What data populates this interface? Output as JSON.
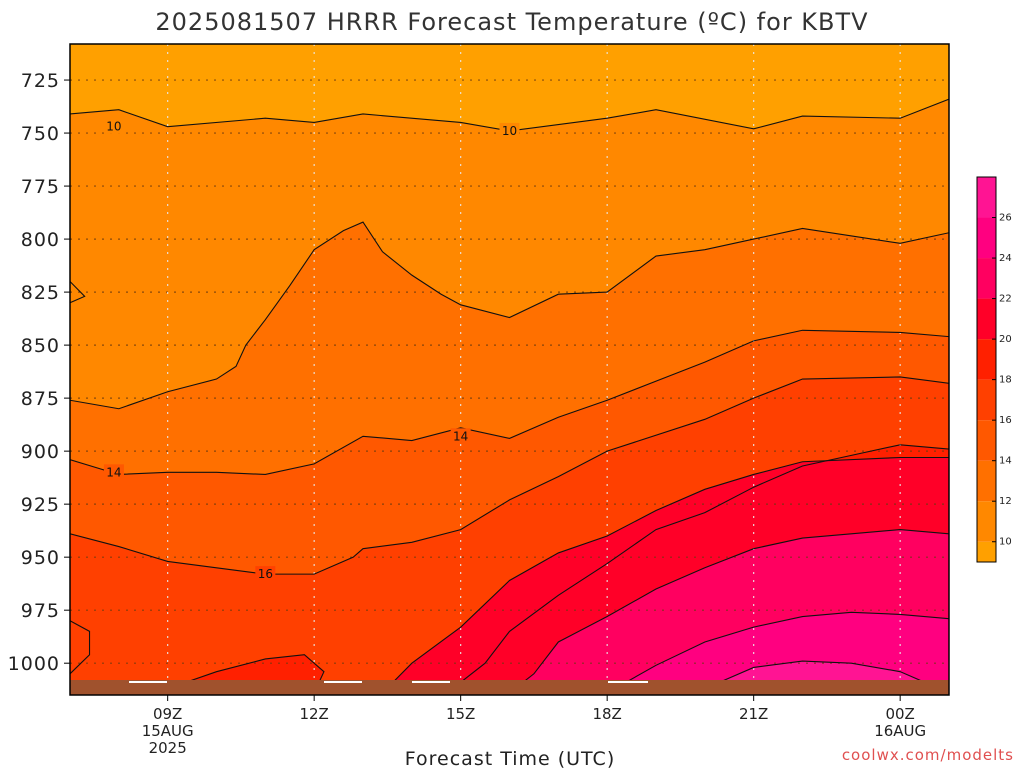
{
  "chart_data": {
    "type": "contour",
    "title": "2025081507 HRRR Forecast Temperature (ºC) for KBTV",
    "xlabel": "Forecast Time (UTC)",
    "ylabel": "",
    "credit": "coolwx.com/modelts",
    "x_ticks": [
      {
        "hour": 9,
        "lines": [
          "09Z",
          "15AUG",
          "2025"
        ]
      },
      {
        "hour": 12,
        "lines": [
          "12Z"
        ]
      },
      {
        "hour": 15,
        "lines": [
          "15Z"
        ]
      },
      {
        "hour": 18,
        "lines": [
          "18Z"
        ]
      },
      {
        "hour": 21,
        "lines": [
          "21Z"
        ]
      },
      {
        "hour": 24,
        "lines": [
          "00Z",
          "16AUG"
        ]
      }
    ],
    "xlim": [
      7,
      25
    ],
    "y_ticks": [
      725,
      750,
      775,
      800,
      825,
      850,
      875,
      900,
      925,
      950,
      975,
      1000
    ],
    "ylim": [
      708,
      1015
    ],
    "y_reversed": true,
    "grid": true,
    "colorbar": {
      "ticks": [
        10,
        12,
        14,
        16,
        18,
        20,
        22,
        24,
        26
      ],
      "colors": [
        "#ffa000",
        "#ff8800",
        "#ff7000",
        "#ff5800",
        "#ff4000",
        "#ff2000",
        "#ff0028",
        "#ff0060",
        "#ff0080",
        "#ff1493"
      ]
    },
    "contour_labels": [
      {
        "text": "10",
        "x": 7.9,
        "y": 747
      },
      {
        "text": "10",
        "x": 16.0,
        "y": 749
      },
      {
        "text": "14",
        "x": 7.9,
        "y": 910
      },
      {
        "text": "14",
        "x": 15.0,
        "y": 893
      },
      {
        "text": "16",
        "x": 11.0,
        "y": 958
      }
    ],
    "contours": [
      {
        "level": 10,
        "points": [
          [
            7,
            741
          ],
          [
            8,
            739
          ],
          [
            9,
            747
          ],
          [
            11,
            743
          ],
          [
            12,
            745
          ],
          [
            13,
            741
          ],
          [
            15,
            745
          ],
          [
            16,
            749
          ],
          [
            18,
            743
          ],
          [
            19,
            739
          ],
          [
            21,
            748
          ],
          [
            22,
            742
          ],
          [
            24,
            743
          ],
          [
            25,
            734
          ]
        ]
      },
      {
        "level": 12,
        "points": [
          [
            7,
            876
          ],
          [
            8,
            880
          ],
          [
            9,
            872
          ],
          [
            10,
            866
          ],
          [
            10.4,
            860
          ],
          [
            10.6,
            850
          ],
          [
            11,
            838
          ],
          [
            11.5,
            822
          ],
          [
            12,
            805
          ],
          [
            12.6,
            796
          ],
          [
            13,
            792
          ],
          [
            13.4,
            806
          ],
          [
            14,
            817
          ],
          [
            14.6,
            826
          ],
          [
            15,
            831
          ],
          [
            16,
            837
          ],
          [
            17,
            826
          ],
          [
            18,
            825
          ],
          [
            19,
            808
          ],
          [
            20,
            805
          ],
          [
            21,
            800
          ],
          [
            22,
            795
          ],
          [
            24,
            802
          ],
          [
            25,
            797
          ]
        ]
      },
      {
        "level": 14,
        "points": [
          [
            7,
            904
          ],
          [
            8,
            911
          ],
          [
            9,
            910
          ],
          [
            10,
            910
          ],
          [
            11,
            911
          ],
          [
            12,
            906
          ],
          [
            13,
            893
          ],
          [
            14,
            895
          ],
          [
            15,
            889
          ],
          [
            16,
            894
          ],
          [
            17,
            884
          ],
          [
            18,
            876
          ],
          [
            20,
            858
          ],
          [
            21,
            848
          ],
          [
            22,
            843
          ],
          [
            24,
            844
          ],
          [
            25,
            846
          ]
        ]
      },
      {
        "level": 16,
        "points": [
          [
            7,
            939
          ],
          [
            8,
            945
          ],
          [
            9,
            952
          ],
          [
            10,
            955
          ],
          [
            11,
            958
          ],
          [
            12,
            958
          ],
          [
            12.8,
            950
          ],
          [
            13,
            946
          ],
          [
            14,
            943
          ],
          [
            15,
            937
          ],
          [
            16,
            923
          ],
          [
            17,
            912
          ],
          [
            18,
            900
          ],
          [
            20,
            885
          ],
          [
            21,
            875
          ],
          [
            22,
            866
          ],
          [
            24,
            865
          ],
          [
            25,
            868
          ]
        ]
      },
      {
        "level": 18,
        "points": [
          [
            14.8,
            1014
          ],
          [
            15,
            1009
          ],
          [
            15.5,
            1000
          ],
          [
            16,
            985
          ],
          [
            17,
            968
          ],
          [
            18,
            953
          ],
          [
            19,
            937
          ],
          [
            20,
            929
          ],
          [
            21,
            917
          ],
          [
            22,
            907
          ],
          [
            23,
            902
          ],
          [
            24,
            897
          ],
          [
            25,
            899
          ]
        ]
      },
      {
        "level": 20,
        "points": [
          [
            13.4,
            1014
          ],
          [
            14,
            1000
          ],
          [
            15,
            983
          ],
          [
            16,
            961
          ],
          [
            17,
            948
          ],
          [
            18,
            940
          ],
          [
            19,
            928
          ],
          [
            20,
            918
          ],
          [
            21,
            911
          ],
          [
            22,
            905
          ],
          [
            24,
            903
          ],
          [
            25,
            903
          ]
        ]
      },
      {
        "level": 22,
        "points": [
          [
            16,
            1014
          ],
          [
            16.5,
            1005
          ],
          [
            17,
            990
          ],
          [
            18,
            978
          ],
          [
            19,
            965
          ],
          [
            20,
            955
          ],
          [
            21,
            946
          ],
          [
            22,
            941
          ],
          [
            24,
            937
          ],
          [
            25,
            939
          ]
        ]
      },
      {
        "level": 24,
        "points": [
          [
            18,
            1014
          ],
          [
            19,
            1001
          ],
          [
            20,
            990
          ],
          [
            21,
            983
          ],
          [
            22,
            978
          ],
          [
            23,
            976
          ],
          [
            24,
            977
          ],
          [
            25,
            979
          ]
        ]
      },
      {
        "level": 26,
        "points": [
          [
            19.5,
            1014
          ],
          [
            20,
            1012
          ],
          [
            21,
            1002
          ],
          [
            22,
            999
          ],
          [
            23,
            1000
          ],
          [
            24,
            1004
          ],
          [
            24.7,
            1011
          ],
          [
            24.5,
            1014
          ]
        ]
      },
      {
        "level": 16,
        "points": [
          [
            7,
            1005
          ],
          [
            7.4,
            996
          ],
          [
            7.4,
            985
          ],
          [
            7,
            980
          ]
        ]
      },
      {
        "level": 14,
        "points": [
          [
            7,
            830
          ],
          [
            7.3,
            827
          ],
          [
            7,
            820
          ]
        ]
      },
      {
        "level": 18,
        "points": [
          [
            9,
            1012
          ],
          [
            10,
            1004
          ],
          [
            11,
            998
          ],
          [
            11.8,
            996
          ],
          [
            12.2,
            1004
          ],
          [
            12,
            1014
          ]
        ]
      }
    ]
  }
}
